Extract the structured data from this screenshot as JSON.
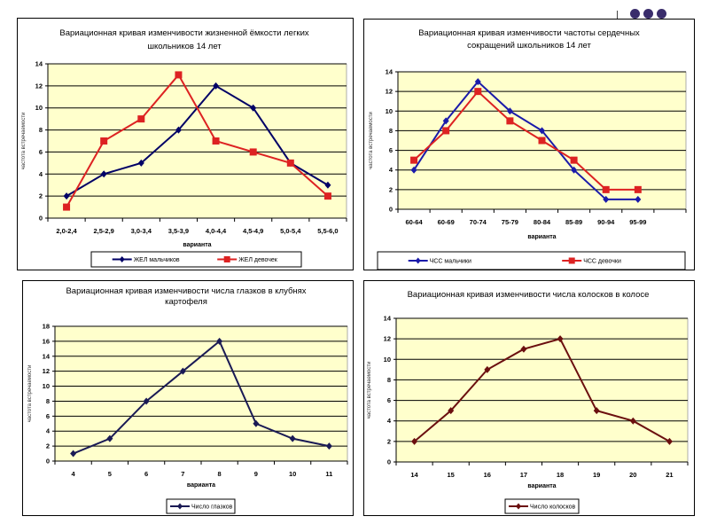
{
  "decoration": {
    "dots_count": 3,
    "dot_color": "#3a2d6b"
  },
  "chart_data": [
    {
      "id": "vital-capacity",
      "type": "line",
      "title": [
        "Вариационная кривая изменчивости жизненной ёмкости легких",
        "школьников 14 лет"
      ],
      "xlabel": "варианта",
      "ylabel": "частота встречаемости",
      "categories": [
        "2,0-2,4",
        "2,5-2,9",
        "3,0-3,4",
        "3,5-3,9",
        "4,0-4,4",
        "4,5-4,9",
        "5,0-5,4",
        "5,5-6,0"
      ],
      "ylim": [
        0,
        14
      ],
      "yticks": [
        0,
        2,
        4,
        6,
        8,
        10,
        12,
        14
      ],
      "grid": true,
      "plot_background": "#ffffcc",
      "legend": "bottom",
      "series": [
        {
          "name": "ЖЕЛ мальчиков",
          "color": "#000066",
          "marker": "diamond",
          "values": [
            2,
            4,
            5,
            8,
            12,
            10,
            5,
            3
          ]
        },
        {
          "name": "ЖЕЛ девочек",
          "color": "#dd2222",
          "marker": "square",
          "values": [
            1,
            7,
            9,
            13,
            7,
            6,
            5,
            2
          ]
        }
      ]
    },
    {
      "id": "heart-rate",
      "type": "line",
      "title": [
        "Вариационная кривая изменчивости частоты сердечных",
        "сокращений школьников 14 лет"
      ],
      "xlabel": "варианта",
      "ylabel": "частота встречаемости",
      "categories": [
        "60-64",
        "60-69",
        "70-74",
        "75-79",
        "80-84",
        "85-89",
        "90-94",
        "95-99",
        ""
      ],
      "ylim": [
        0,
        14
      ],
      "yticks": [
        0,
        2,
        4,
        6,
        8,
        10,
        12,
        14
      ],
      "grid": true,
      "plot_background": "#ffffcc",
      "legend": "bottom",
      "series": [
        {
          "name": "ЧСС мальчики",
          "color": "#1a1aaa",
          "marker": "diamond",
          "values": [
            4,
            9,
            13,
            10,
            8,
            4,
            1,
            1
          ]
        },
        {
          "name": "ЧСС девочки",
          "color": "#dd2222",
          "marker": "square",
          "values": [
            5,
            8,
            12,
            9,
            7,
            5,
            2,
            2
          ]
        }
      ]
    },
    {
      "id": "potato-eyes",
      "type": "line",
      "title": [
        "Вариационная кривая изменчивости числа глазков в клубнях",
        "картофеля"
      ],
      "xlabel": "варианта",
      "ylabel": "частота встречаемости",
      "categories": [
        "4",
        "5",
        "6",
        "7",
        "8",
        "9",
        "10",
        "11"
      ],
      "ylim": [
        0,
        18
      ],
      "yticks": [
        0,
        2,
        4,
        6,
        8,
        10,
        12,
        14,
        16,
        18
      ],
      "grid": true,
      "plot_background": "#ffffcc",
      "legend": "bottom",
      "series": [
        {
          "name": "Число глазков",
          "color": "#1a1a55",
          "marker": "diamond",
          "values": [
            1,
            3,
            8,
            12,
            16,
            5,
            3,
            2
          ]
        }
      ]
    },
    {
      "id": "spikelets",
      "type": "line",
      "title": [
        "Вариационная кривая изменчивости числа колосков в колосе"
      ],
      "xlabel": "варианта",
      "ylabel": "частота встречаемости",
      "categories": [
        "14",
        "15",
        "16",
        "17",
        "18",
        "19",
        "20",
        "21"
      ],
      "ylim": [
        0,
        14
      ],
      "yticks": [
        0,
        2,
        4,
        6,
        8,
        10,
        12,
        14
      ],
      "grid": true,
      "plot_background": "#ffffcc",
      "legend": "bottom",
      "series": [
        {
          "name": "Число колосков",
          "color": "#6b0f0f",
          "marker": "diamond",
          "values": [
            2,
            5,
            9,
            11,
            12,
            5,
            4,
            2
          ]
        }
      ]
    }
  ]
}
